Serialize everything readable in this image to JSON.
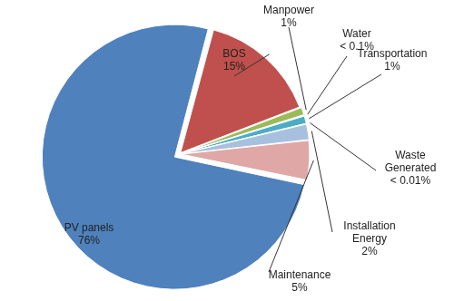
{
  "chart_data": {
    "type": "pie",
    "categories": [
      "BOS",
      "Manpower",
      "Water",
      "Transportation",
      "Waste Generated",
      "Installation Energy",
      "Maintenance",
      "PV panels"
    ],
    "values": [
      15,
      1,
      0.1,
      1,
      0.01,
      2,
      5,
      76
    ],
    "value_labels": [
      "15%",
      "1%",
      "< 0.1%",
      "1%",
      "< 0.01%",
      "2%",
      "5%",
      "76%"
    ],
    "colors": [
      "#c0504d",
      "#9bbb59",
      "#8064a2",
      "#4bacc6",
      "#f79646",
      "#a7c0de",
      "#dfa7a6",
      "#4f81bd"
    ],
    "data_labels": true
  }
}
